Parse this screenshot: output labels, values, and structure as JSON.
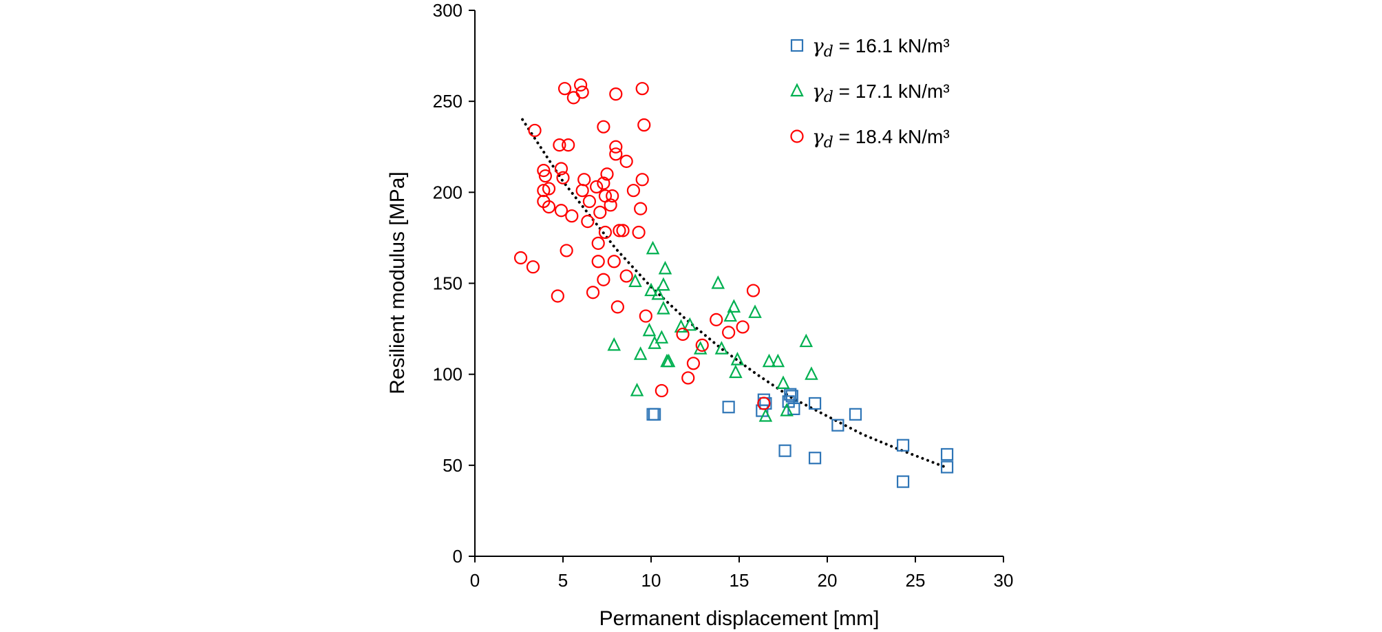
{
  "chart_data": {
    "type": "scatter",
    "xlabel": "Permanent displacement [mm]",
    "ylabel": "Resilient modulus [MPa]",
    "xlim": [
      0,
      30
    ],
    "ylim": [
      0,
      300
    ],
    "xticks": [
      0,
      5,
      10,
      15,
      20,
      25,
      30
    ],
    "yticks": [
      0,
      50,
      100,
      150,
      200,
      250,
      300
    ],
    "grid": false,
    "legend_position": "top-right",
    "series": [
      {
        "name": "γd = 16.1 kN/m³",
        "legend_symbol": "γ",
        "legend_subscript": "d",
        "legend_rest": " = 16.1 kN/m³",
        "marker": "square",
        "color": "#2e75b6",
        "points": [
          [
            10.1,
            78
          ],
          [
            10.2,
            78
          ],
          [
            14.4,
            82
          ],
          [
            16.3,
            80
          ],
          [
            16.4,
            86
          ],
          [
            16.5,
            84
          ],
          [
            17.6,
            58
          ],
          [
            17.8,
            85
          ],
          [
            17.9,
            89
          ],
          [
            18.0,
            88
          ],
          [
            18.1,
            81
          ],
          [
            19.3,
            84
          ],
          [
            19.3,
            54
          ],
          [
            20.6,
            72
          ],
          [
            21.6,
            78
          ],
          [
            24.3,
            61
          ],
          [
            24.3,
            41
          ],
          [
            26.8,
            56
          ],
          [
            26.8,
            49
          ]
        ]
      },
      {
        "name": "γd = 17.1 kN/m³",
        "legend_symbol": "γ",
        "legend_subscript": "d",
        "legend_rest": " = 17.1 kN/m³",
        "marker": "triangle",
        "color": "#00b050",
        "points": [
          [
            7.9,
            116
          ],
          [
            9.1,
            151
          ],
          [
            9.2,
            91
          ],
          [
            9.4,
            111
          ],
          [
            9.9,
            124
          ],
          [
            10.0,
            146
          ],
          [
            10.1,
            169
          ],
          [
            10.2,
            117
          ],
          [
            10.4,
            144
          ],
          [
            10.6,
            120
          ],
          [
            10.7,
            149
          ],
          [
            10.7,
            136
          ],
          [
            10.8,
            158
          ],
          [
            10.9,
            107
          ],
          [
            11.0,
            107
          ],
          [
            11.7,
            126
          ],
          [
            12.2,
            127
          ],
          [
            12.8,
            114
          ],
          [
            13.8,
            150
          ],
          [
            14.0,
            114
          ],
          [
            14.5,
            132
          ],
          [
            14.7,
            137
          ],
          [
            14.8,
            101
          ],
          [
            14.9,
            108
          ],
          [
            15.9,
            134
          ],
          [
            16.5,
            77
          ],
          [
            16.7,
            107
          ],
          [
            17.2,
            107
          ],
          [
            17.5,
            95
          ],
          [
            17.7,
            80
          ],
          [
            18.8,
            118
          ],
          [
            19.1,
            100
          ]
        ]
      },
      {
        "name": "γd = 18.4 kN/m³",
        "legend_symbol": "γ",
        "legend_subscript": "d",
        "legend_rest": " = 18.4 kN/m³",
        "marker": "circle",
        "color": "#ff0000",
        "points": [
          [
            2.6,
            164
          ],
          [
            3.3,
            159
          ],
          [
            3.4,
            234
          ],
          [
            3.9,
            212
          ],
          [
            3.9,
            195
          ],
          [
            3.9,
            201
          ],
          [
            4.0,
            209
          ],
          [
            4.2,
            202
          ],
          [
            4.2,
            192
          ],
          [
            4.7,
            143
          ],
          [
            4.8,
            226
          ],
          [
            4.9,
            190
          ],
          [
            4.9,
            213
          ],
          [
            5.0,
            208
          ],
          [
            5.1,
            257
          ],
          [
            5.2,
            168
          ],
          [
            5.3,
            226
          ],
          [
            5.5,
            187
          ],
          [
            5.6,
            252
          ],
          [
            6.0,
            259
          ],
          [
            6.1,
            201
          ],
          [
            6.1,
            255
          ],
          [
            6.2,
            207
          ],
          [
            6.4,
            184
          ],
          [
            6.5,
            195
          ],
          [
            6.7,
            145
          ],
          [
            6.9,
            203
          ],
          [
            7.0,
            162
          ],
          [
            7.0,
            172
          ],
          [
            7.1,
            189
          ],
          [
            7.3,
            205
          ],
          [
            7.3,
            236
          ],
          [
            7.3,
            152
          ],
          [
            7.4,
            198
          ],
          [
            7.4,
            178
          ],
          [
            7.5,
            210
          ],
          [
            7.7,
            193
          ],
          [
            7.8,
            198
          ],
          [
            7.9,
            162
          ],
          [
            8.0,
            225
          ],
          [
            8.0,
            221
          ],
          [
            8.0,
            254
          ],
          [
            8.1,
            137
          ],
          [
            8.2,
            179
          ],
          [
            8.4,
            179
          ],
          [
            8.6,
            217
          ],
          [
            8.6,
            154
          ],
          [
            9.0,
            201
          ],
          [
            9.3,
            178
          ],
          [
            9.4,
            191
          ],
          [
            9.5,
            257
          ],
          [
            9.5,
            207
          ],
          [
            9.6,
            237
          ],
          [
            9.7,
            132
          ],
          [
            10.6,
            91
          ],
          [
            11.8,
            122
          ],
          [
            12.1,
            98
          ],
          [
            12.4,
            106
          ],
          [
            12.9,
            116
          ],
          [
            13.7,
            130
          ],
          [
            14.4,
            123
          ],
          [
            15.2,
            126
          ],
          [
            15.8,
            146
          ],
          [
            16.4,
            84
          ]
        ]
      }
    ],
    "trendline": {
      "style": "dotted",
      "color": "#000000",
      "points": [
        [
          2.7,
          240
        ],
        [
          5,
          206
        ],
        [
          8,
          169
        ],
        [
          10,
          148
        ],
        [
          12,
          130
        ],
        [
          14,
          114
        ],
        [
          16,
          100
        ],
        [
          18,
          87
        ],
        [
          20,
          77
        ],
        [
          22,
          67
        ],
        [
          24,
          59
        ],
        [
          26.7,
          49
        ]
      ]
    }
  }
}
